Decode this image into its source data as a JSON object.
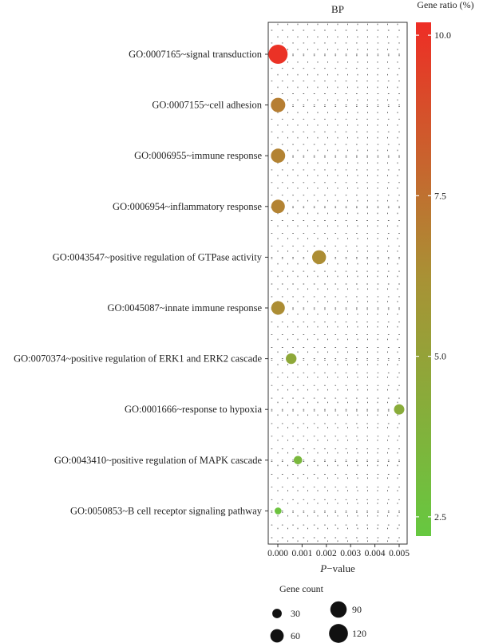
{
  "chart_data": {
    "type": "scatter",
    "title": "BP",
    "xlabel_prefix": "P",
    "xlabel_suffix": "−value",
    "xlim": [
      0,
      0.005
    ],
    "x_ticks": [
      0.0,
      0.001,
      0.002,
      0.003,
      0.004,
      0.005
    ],
    "x_tick_labels": [
      "0.000",
      "0.001",
      "0.002",
      "0.003",
      "0.004",
      "0.005"
    ],
    "categories": [
      "GO:0007165~signal transduction",
      "GO:0007155~cell adhesion",
      "GO:0006955~immune response",
      "GO:0006954~inflammatory response",
      "GO:0043547~positive regulation of GTPase activity",
      "GO:0045087~innate immune response",
      "GO:0070374~positive regulation of ERK1 and ERK2 cascade",
      "GO:0001666~response to hypoxia",
      "GO:0043410~positive regulation of MAPK cascade",
      "GO:0050853~B cell receptor signaling pathway"
    ],
    "points": [
      {
        "term": "GO:0007165~signal transduction",
        "p_value": 1e-05,
        "gene_ratio": 10.0,
        "gene_count": 123
      },
      {
        "term": "GO:0007155~cell adhesion",
        "p_value": 1e-05,
        "gene_ratio": 7.0,
        "gene_count": 70
      },
      {
        "term": "GO:0006955~immune response",
        "p_value": 1e-05,
        "gene_ratio": 6.8,
        "gene_count": 68
      },
      {
        "term": "GO:0006954~inflammatory response",
        "p_value": 1e-05,
        "gene_ratio": 6.8,
        "gene_count": 62
      },
      {
        "term": "GO:0043547~positive regulation of GTPase activity",
        "p_value": 0.0017,
        "gene_ratio": 6.4,
        "gene_count": 65
      },
      {
        "term": "GO:0045087~innate immune response",
        "p_value": 1e-05,
        "gene_ratio": 6.4,
        "gene_count": 62
      },
      {
        "term": "GO:0070374~positive regulation of ERK1 and ERK2 cascade",
        "p_value": 0.00055,
        "gene_ratio": 4.6,
        "gene_count": 38
      },
      {
        "term": "GO:0001666~response to hypoxia",
        "p_value": 0.005,
        "gene_ratio": 4.3,
        "gene_count": 36
      },
      {
        "term": "GO:0043410~positive regulation of MAPK cascade",
        "p_value": 0.00083,
        "gene_ratio": 3.4,
        "gene_count": 24
      },
      {
        "term": "GO:0050853~B cell receptor signaling pathway",
        "p_value": 1e-05,
        "gene_ratio": 2.6,
        "gene_count": 16
      }
    ],
    "color_scale": {
      "title": "Gene ratio (%)",
      "range": [
        2.2,
        10.2
      ],
      "ticks": [
        2.5,
        5.0,
        7.5,
        10.0
      ],
      "tick_labels": [
        "2.5",
        "5.0",
        "7.5",
        "10.0"
      ],
      "low_color": "#66c840",
      "mid_color": "#a89235",
      "high_color": "#ee2d25"
    },
    "size_legend": {
      "title": "Gene count",
      "values": [
        30,
        60,
        90,
        120
      ],
      "labels": [
        "30",
        "60",
        "90",
        "120"
      ]
    },
    "grid": true,
    "grid_style": "dotted"
  }
}
